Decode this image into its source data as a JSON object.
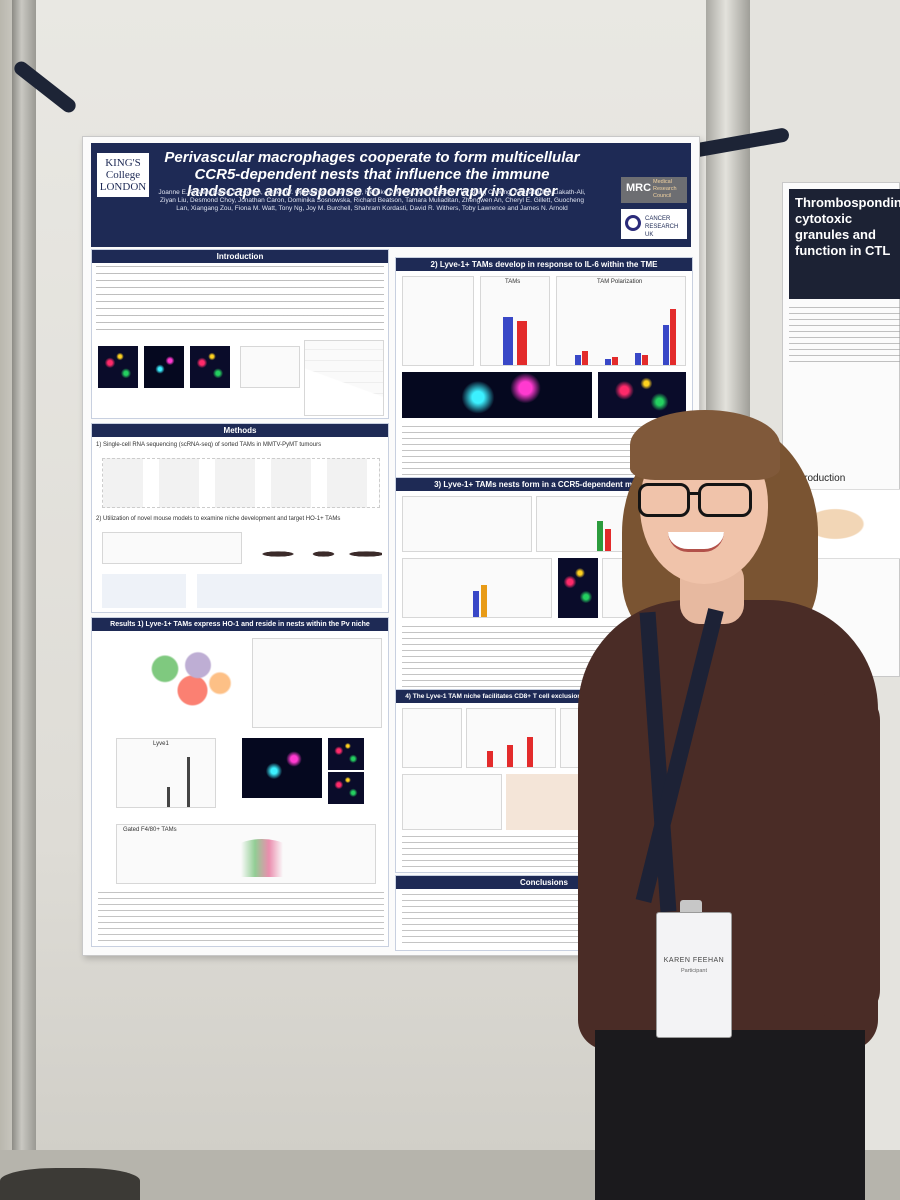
{
  "poster": {
    "logo_text": "KING'S College LONDON",
    "title": "Perivascular macrophages cooperate to form multicellular CCR5-dependent nests that influence the immune landscape and response to chemotherapy in cancer",
    "authors": "Joanne E. Anstee, Karen T. Feehan, James W. Opzoomer, Isaac Dean, Henrike P. Muller, Meriem Bahri, Tik Shing Cheung, Kifayathullah Liakath-Ali, Ziyan Liu, Desmond Choy, Jonathan Caron, Dominika Sosnowska, Richard Beatson, Tamara Muliaditan, Zhengwen An, Cheryl E. Gillett, Guocheng Lan, Xiangang Zou, Fiona M. Watt, Tony Ng, Joy M. Burchell, Shahram Kordasti, David R. Withers, Toby Lawrence and James N. Arnold",
    "mrc_label": "MRC",
    "mrc_sub": "Medical Research Council",
    "cruk_label": "CANCER RESEARCH UK",
    "sections": {
      "intro": "Introduction",
      "methods": "Methods",
      "results1": "Results 1) Lyve-1+ TAMs express HO-1 and reside in nests within the Pv niche",
      "sec2": "2) Lyve-1+ TAMs develop in response to IL-6 within the TME",
      "sec3": "3) Lyve-1+ TAMs nests form in a CCR5-dependent manner",
      "sec4": "4) The Lyve-1 TAM niche facilitates CD8+ T cell exclusion and resistance to chemotherapy",
      "conclusions": "Conclusions"
    },
    "methods_items": {
      "m1": "1) Single-cell RNA sequencing (scRNA-seq) of sorted TAMs in MMTV-PyMT tumours",
      "m2": "2) Utilization of novel mouse models to examine niche development and target HO-1+ TAMs"
    },
    "panel_labels": {
      "tams": "TAMs",
      "tam_polarization": "TAM Polarization",
      "lyve1": "Lyve1",
      "gated": "Gated F4/80+ TAMs"
    }
  },
  "poster2": {
    "title": "Thrombospondins cytotoxic granules and function in CTL",
    "intro": "Introduction"
  },
  "badge": {
    "name": "KAREN FEEHAN",
    "role": "Participant"
  }
}
